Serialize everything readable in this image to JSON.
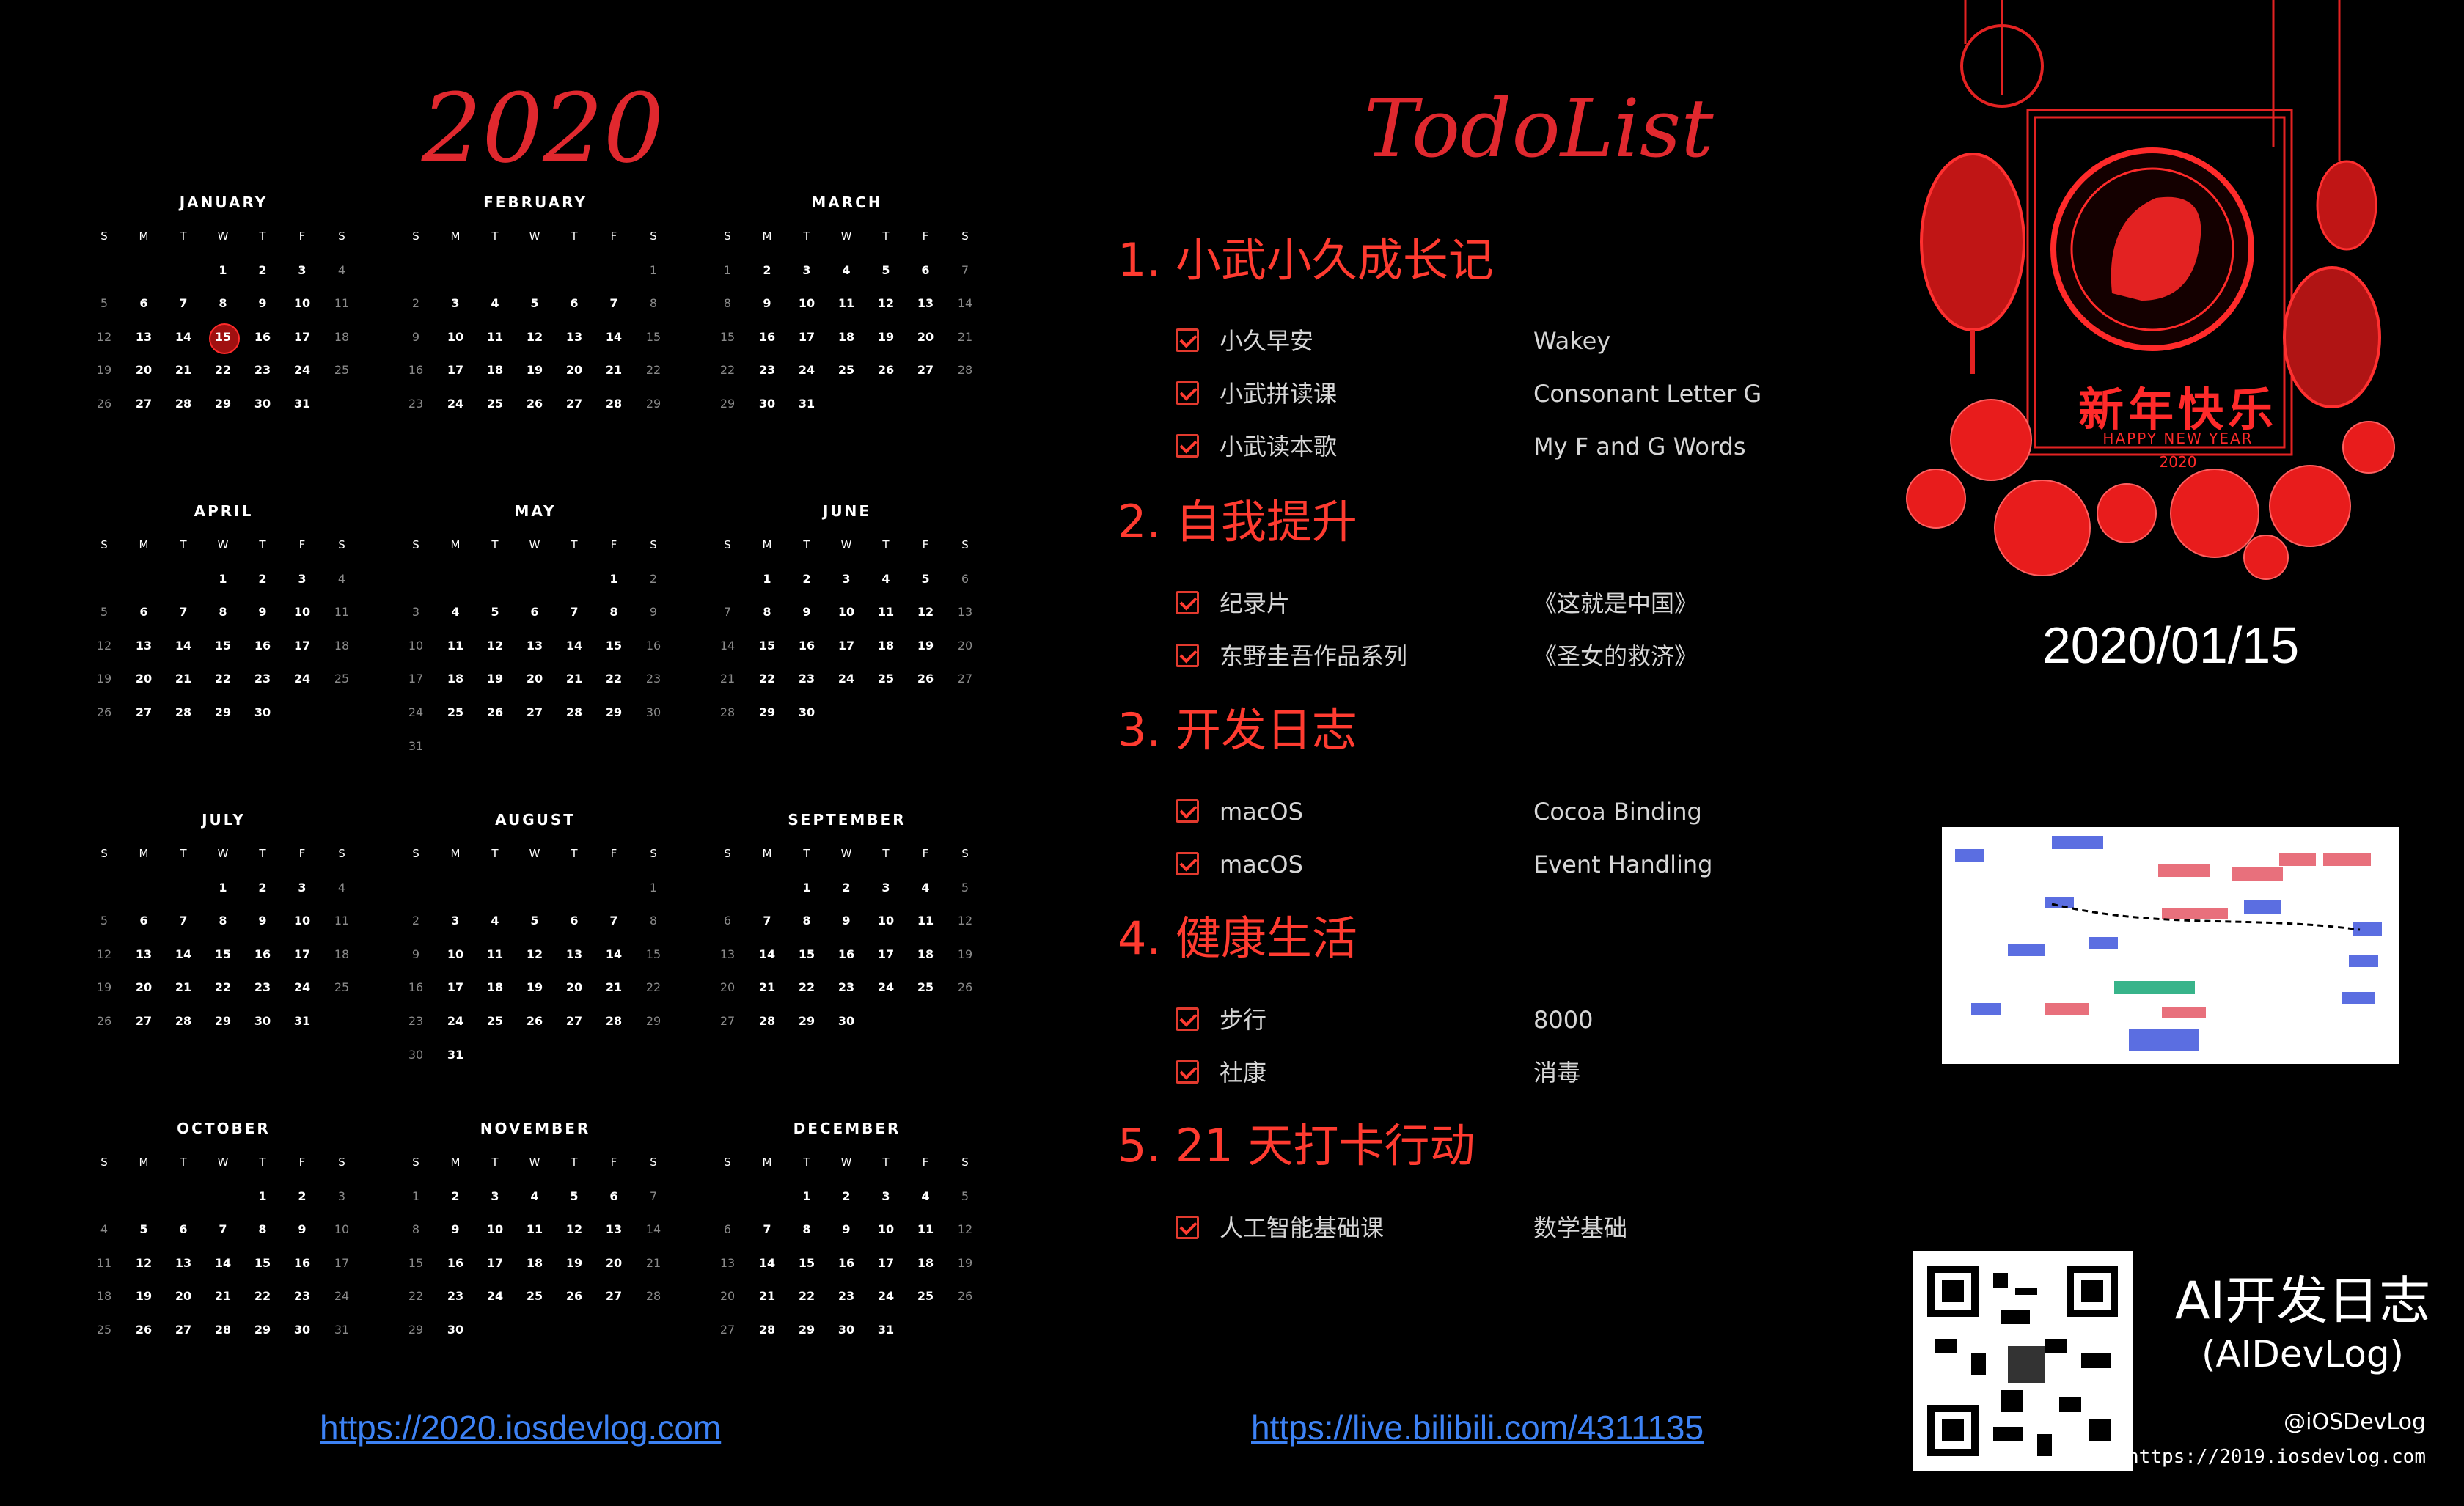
{
  "calendar": {
    "year_title": "2020",
    "dow": [
      "S",
      "M",
      "T",
      "W",
      "T",
      "F",
      "S"
    ],
    "today": {
      "month": 0,
      "day": 15
    },
    "months": [
      {
        "name": "JANUARY",
        "first": 3,
        "days": 31
      },
      {
        "name": "FEBRUARY",
        "first": 6,
        "days": 29
      },
      {
        "name": "MARCH",
        "first": 0,
        "days": 31
      },
      {
        "name": "APRIL",
        "first": 3,
        "days": 30
      },
      {
        "name": "MAY",
        "first": 5,
        "days": 31
      },
      {
        "name": "JUNE",
        "first": 1,
        "days": 30
      },
      {
        "name": "JULY",
        "first": 3,
        "days": 31
      },
      {
        "name": "AUGUST",
        "first": 6,
        "days": 31
      },
      {
        "name": "SEPTEMBER",
        "first": 2,
        "days": 30
      },
      {
        "name": "OCTOBER",
        "first": 4,
        "days": 31
      },
      {
        "name": "NOVEMBER",
        "first": 0,
        "days": 30
      },
      {
        "name": "DECEMBER",
        "first": 2,
        "days": 31
      }
    ],
    "link": "https://2020.iosdevlog.com"
  },
  "todo": {
    "title": "TodoList",
    "sections": [
      {
        "title": "1. 小武小久成长记",
        "items": [
          {
            "label": "小久早安",
            "value": "Wakey",
            "checked": true
          },
          {
            "label": "小武拼读课",
            "value": "Consonant Letter G",
            "checked": true
          },
          {
            "label": "小武读本歌",
            "value": "My F and G Words",
            "checked": true
          }
        ]
      },
      {
        "title": "2. 自我提升",
        "items": [
          {
            "label": "纪录片",
            "value": "《这就是中国》",
            "checked": true
          },
          {
            "label": "东野圭吾作品系列",
            "value": "《圣女的救济》",
            "checked": true
          }
        ]
      },
      {
        "title": "3. 开发日志",
        "items": [
          {
            "label": "macOS",
            "value": "Cocoa Binding",
            "checked": true
          },
          {
            "label": "macOS",
            "value": "Event Handling",
            "checked": true
          }
        ]
      },
      {
        "title": "4. 健康生活",
        "items": [
          {
            "label": "步行",
            "value": "8000",
            "checked": true
          },
          {
            "label": "社康",
            "value": "消毒",
            "checked": true
          }
        ]
      },
      {
        "title": "5. 21 天打卡行动",
        "items": [
          {
            "label": "人工智能基础课",
            "value": "数学基础",
            "checked": true
          }
        ]
      }
    ],
    "link": "https://live.bilibili.com/4311135"
  },
  "right": {
    "greeting": "新年快乐",
    "greeting_sub": "HAPPY NEW YEAR",
    "greeting_year": "2020",
    "date": "2020/01/15",
    "brand_title": "AI开发日志",
    "brand_sub": "(AIDevLog)",
    "handle": "@iOSDevLog",
    "url": "https://2019.iosdevlog.com"
  },
  "colors": {
    "accent": "#e0282e",
    "section": "#ff3b30",
    "link": "#3d82f5",
    "background": "#000000"
  }
}
